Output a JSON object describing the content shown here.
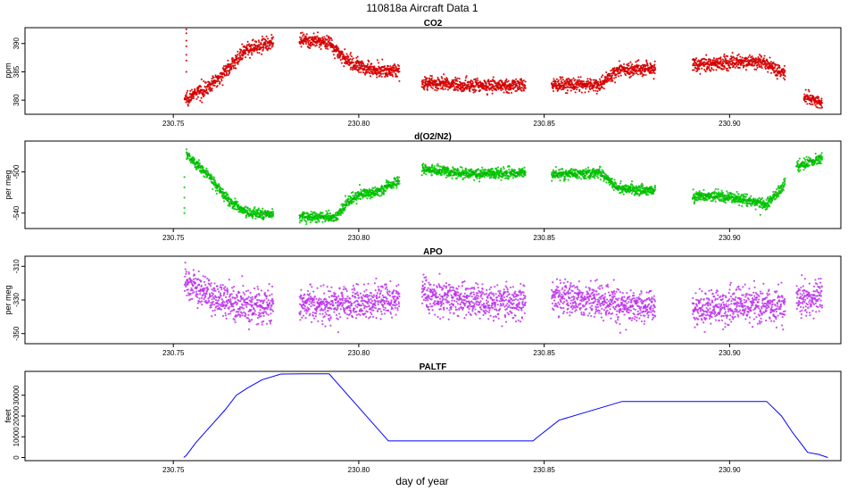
{
  "page": {
    "title": "110818a    Aircraft Data 1",
    "xlabel": "day of year"
  },
  "chart_data": [
    {
      "type": "scatter",
      "title": "CO2",
      "ylabel": "ppm",
      "xlim": [
        230.71,
        230.93
      ],
      "ylim": [
        377.5,
        392.8
      ],
      "xticks": [
        230.75,
        230.8,
        230.85,
        230.9
      ],
      "xtick_labels": [
        "230.75",
        "230.80",
        "230.85",
        "230.90"
      ],
      "yticks": [
        380,
        385,
        390
      ],
      "ytick_labels": [
        "380",
        "385",
        "390"
      ],
      "color": "#ff0000",
      "edge_color": "#990000",
      "noise": 0.6,
      "segments": [
        {
          "x": [
            230.753,
            230.755,
            230.76,
            230.765,
            230.77,
            230.775,
            230.777
          ],
          "y": [
            380.2,
            380.8,
            382.5,
            385.8,
            389.0,
            390.0,
            390.1
          ]
        },
        {
          "x": [
            230.784,
            230.792,
            230.796,
            230.8,
            230.805,
            230.811
          ],
          "y": [
            390.4,
            390.3,
            387.3,
            386.0,
            385.3,
            385.2
          ]
        },
        {
          "x": [
            230.817,
            230.83,
            230.845
          ],
          "y": [
            383.0,
            382.6,
            382.6
          ]
        },
        {
          "x": [
            230.852,
            230.865,
            230.87,
            230.88
          ],
          "y": [
            382.8,
            382.6,
            385.4,
            385.6
          ]
        },
        {
          "x": [
            230.89,
            230.9,
            230.908,
            230.911,
            230.915
          ],
          "y": [
            386.3,
            386.6,
            386.8,
            386.0,
            384.6
          ]
        },
        {
          "x": [
            230.92,
            230.923,
            230.925
          ],
          "y": [
            380.5,
            380.0,
            379.3
          ]
        }
      ],
      "spikes": [
        {
          "x": 230.7535,
          "y": [
            385.0,
            387.0,
            388.0,
            389.5,
            390.5,
            391.8,
            392.5
          ]
        }
      ]
    },
    {
      "type": "scatter",
      "title": "d(O2/N2)",
      "ylabel": "per meg",
      "xlim": [
        230.71,
        230.93
      ],
      "ylim": [
        -555,
        -470
      ],
      "xticks": [
        230.75,
        230.8,
        230.85,
        230.9
      ],
      "xtick_labels": [
        "230.75",
        "230.80",
        "230.85",
        "230.90"
      ],
      "yticks": [
        -540,
        -500
      ],
      "ytick_labels": [
        "-540",
        "-500"
      ],
      "color": "#00ff00",
      "edge_color": "#006600",
      "noise": 2.5,
      "segments": [
        {
          "x": [
            230.7535,
            230.755,
            230.76,
            230.765,
            230.77,
            230.777
          ],
          "y": [
            -482.0,
            -488.0,
            -505.0,
            -528.0,
            -540.0,
            -541.0
          ]
        },
        {
          "x": [
            230.784,
            230.794,
            230.797,
            230.8,
            230.806,
            230.811
          ],
          "y": [
            -543.0,
            -544.0,
            -530.0,
            -522.0,
            -518.0,
            -508.0
          ]
        },
        {
          "x": [
            230.817,
            230.83,
            230.845
          ],
          "y": [
            -497.0,
            -502.0,
            -501.0
          ]
        },
        {
          "x": [
            230.852,
            230.865,
            230.87,
            230.88
          ],
          "y": [
            -503.0,
            -500.0,
            -516.0,
            -518.0
          ]
        },
        {
          "x": [
            230.89,
            230.9,
            230.91,
            230.915
          ],
          "y": [
            -523.0,
            -524.0,
            -532.0,
            -511.0
          ]
        },
        {
          "x": [
            230.918,
            230.922,
            230.925
          ],
          "y": [
            -494.0,
            -490.0,
            -487.0
          ]
        }
      ],
      "spikes": [
        {
          "x": 230.753,
          "y": [
            -505.0,
            -515.0,
            -525.0,
            -535.0,
            -540.0
          ]
        }
      ]
    },
    {
      "type": "scatter",
      "title": "APO",
      "ylabel": "per meg",
      "xlim": [
        230.71,
        230.93
      ],
      "ylim": [
        -356,
        -304
      ],
      "xticks": [
        230.75,
        230.8,
        230.85,
        230.9
      ],
      "xtick_labels": [
        "230.75",
        "230.80",
        "230.85",
        "230.90"
      ],
      "yticks": [
        -350,
        -330,
        -310
      ],
      "ytick_labels": [
        "-350",
        "-330",
        "-310"
      ],
      "color": "#dd55ff",
      "edge_color": "#8800cc",
      "noise": 5.0,
      "segments": [
        {
          "x": [
            230.753,
            230.76,
            230.77,
            230.777
          ],
          "y": [
            -318.0,
            -328.0,
            -334.0,
            -333.0
          ]
        },
        {
          "x": [
            230.784,
            230.8,
            230.811
          ],
          "y": [
            -333.0,
            -332.0,
            -330.0
          ]
        },
        {
          "x": [
            230.817,
            230.83,
            230.845
          ],
          "y": [
            -327.0,
            -331.0,
            -331.0
          ]
        },
        {
          "x": [
            230.852,
            230.865,
            230.88
          ],
          "y": [
            -329.0,
            -331.0,
            -335.0
          ]
        },
        {
          "x": [
            230.89,
            230.9,
            230.915
          ],
          "y": [
            -335.0,
            -334.0,
            -333.0
          ]
        },
        {
          "x": [
            230.918,
            230.922,
            230.925
          ],
          "y": [
            -328.0,
            -330.0,
            -326.0
          ]
        }
      ],
      "spikes": []
    },
    {
      "type": "line",
      "title": "PALTF",
      "ylabel": "feet",
      "xlim": [
        230.71,
        230.93
      ],
      "ylim": [
        -1500,
        41500
      ],
      "xticks": [
        230.75,
        230.8,
        230.85,
        230.9
      ],
      "xtick_labels": [
        "230.75",
        "230.80",
        "230.85",
        "230.90"
      ],
      "yticks": [
        0,
        10000,
        20000,
        30000
      ],
      "ytick_labels": [
        "0",
        "10000",
        "20000",
        "30000"
      ],
      "color": "#0000ff",
      "series": [
        {
          "name": "PALTF",
          "x": [
            230.7528,
            230.7535,
            230.756,
            230.76,
            230.764,
            230.767,
            230.77,
            230.774,
            230.779,
            230.785,
            230.792,
            230.808,
            230.847,
            230.848,
            230.854,
            230.871,
            230.877,
            230.91,
            230.914,
            230.917,
            230.92,
            230.921,
            230.924,
            230.9265
          ],
          "y": [
            0,
            1000,
            7000,
            15000,
            23000,
            30000,
            33500,
            37500,
            40200,
            40300,
            40300,
            8000,
            8000,
            9500,
            18000,
            27000,
            27000,
            27000,
            20000,
            12000,
            5000,
            2500,
            1500,
            0
          ]
        }
      ]
    }
  ]
}
